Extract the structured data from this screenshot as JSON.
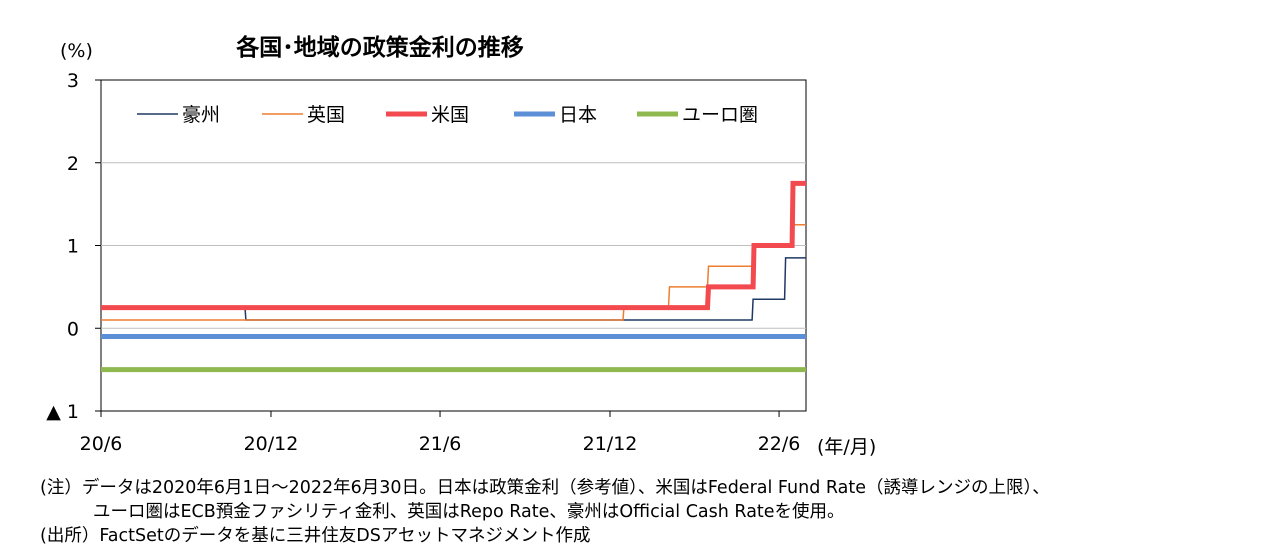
{
  "chart_data": {
    "type": "line",
    "title": "各国･地域の政策金利の推移",
    "ylabel": "(%)",
    "x_unit_label": "(年/月)",
    "ylim": [
      -1,
      3
    ],
    "y_ticks": [
      3,
      2,
      1,
      0,
      -1
    ],
    "y_tick_labels": [
      "3",
      "2",
      "1",
      "0",
      "▲ 1"
    ],
    "x_ticks": [
      "2020-06",
      "2020-12",
      "2021-06",
      "2021-12",
      "2022-06"
    ],
    "x_tick_labels": [
      "20/6",
      "20/12",
      "21/6",
      "21/12",
      "22/6"
    ],
    "x_range": [
      "2020-06-01",
      "2022-06-30"
    ],
    "grid": "horizontal",
    "legend_position": "top",
    "series": [
      {
        "name": "豪州",
        "color": "#1f3864",
        "style": "thin",
        "points": [
          [
            "2020-06-01",
            0.25
          ],
          [
            "2020-11-03",
            0.25
          ],
          [
            "2020-11-04",
            0.1
          ],
          [
            "2022-05-03",
            0.1
          ],
          [
            "2022-05-04",
            0.35
          ],
          [
            "2022-06-07",
            0.35
          ],
          [
            "2022-06-08",
            0.85
          ],
          [
            "2022-06-30",
            0.85
          ]
        ]
      },
      {
        "name": "英国",
        "color": "#ed7d31",
        "style": "thin",
        "points": [
          [
            "2020-06-01",
            0.1
          ],
          [
            "2021-12-15",
            0.1
          ],
          [
            "2021-12-16",
            0.25
          ],
          [
            "2022-02-02",
            0.25
          ],
          [
            "2022-02-03",
            0.5
          ],
          [
            "2022-03-16",
            0.5
          ],
          [
            "2022-03-17",
            0.75
          ],
          [
            "2022-05-04",
            0.75
          ],
          [
            "2022-05-05",
            1.0
          ],
          [
            "2022-06-15",
            1.0
          ],
          [
            "2022-06-16",
            1.25
          ],
          [
            "2022-06-30",
            1.25
          ]
        ]
      },
      {
        "name": "米国",
        "color": "#f24a4f",
        "style": "thick",
        "points": [
          [
            "2020-06-01",
            0.25
          ],
          [
            "2022-03-16",
            0.25
          ],
          [
            "2022-03-17",
            0.5
          ],
          [
            "2022-05-04",
            0.5
          ],
          [
            "2022-05-05",
            1.0
          ],
          [
            "2022-06-15",
            1.0
          ],
          [
            "2022-06-16",
            1.75
          ],
          [
            "2022-06-30",
            1.75
          ]
        ]
      },
      {
        "name": "日本",
        "color": "#5b8fd6",
        "style": "thick",
        "points": [
          [
            "2020-06-01",
            -0.1
          ],
          [
            "2022-06-30",
            -0.1
          ]
        ]
      },
      {
        "name": "ユーロ圏",
        "color": "#8fb84e",
        "style": "thick",
        "points": [
          [
            "2020-06-01",
            -0.5
          ],
          [
            "2022-06-30",
            -0.5
          ]
        ]
      }
    ]
  },
  "notes": [
    "(注）データは2020年6月1日～2022年6月30日。日本は政策金利（参考値）、米国はFederal Fund Rate（誘導レンジの上限）、",
    "ユーロ圏はECB預金ファシリティ金利、英国はRepo Rate、豪州はOfficial Cash Rateを使用。",
    "(出所）FactSetのデータを基に三井住友DSアセットマネジメント作成"
  ]
}
